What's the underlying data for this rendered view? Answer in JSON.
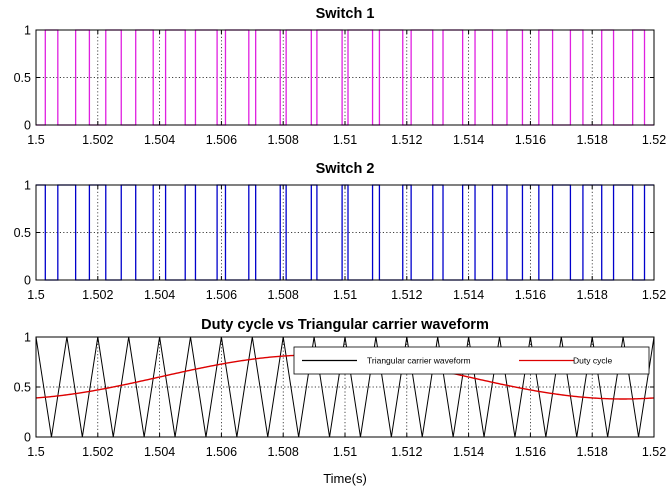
{
  "chart_data": [
    {
      "type": "line",
      "title": "Switch 1",
      "xlabel": "",
      "ylabel": "",
      "xlim": [
        1.5,
        1.52
      ],
      "ylim": [
        0,
        1
      ],
      "xticks": [
        "1.5",
        "1.502",
        "1.504",
        "1.506",
        "1.508",
        "1.51",
        "1.512",
        "1.514",
        "1.516",
        "1.518",
        "1.52"
      ],
      "yticks": [
        "0",
        "0.5",
        "1"
      ],
      "grid": true,
      "color": "#e020e0",
      "carrier_frequency_hz": 1000,
      "modulation": {
        "offset": 0.6,
        "amplitude": 0.22,
        "frequency_hz": 50,
        "phase_deg": -72
      },
      "complementary": false,
      "series": [
        {
          "values": "PWM square wave, levels 0/1; high while duty cycle > triangular carrier"
        }
      ]
    },
    {
      "type": "line",
      "title": "Switch 2",
      "xlabel": "",
      "ylabel": "",
      "xlim": [
        1.5,
        1.52
      ],
      "ylim": [
        0,
        1
      ],
      "xticks": [
        "1.5",
        "1.502",
        "1.504",
        "1.506",
        "1.508",
        "1.51",
        "1.512",
        "1.514",
        "1.516",
        "1.518",
        "1.52"
      ],
      "yticks": [
        "0",
        "0.5",
        "1"
      ],
      "grid": true,
      "color": "#0000cc",
      "carrier_frequency_hz": 1000,
      "modulation": {
        "offset": 0.6,
        "amplitude": 0.22,
        "frequency_hz": 50,
        "phase_deg": -72
      },
      "complementary": true,
      "series": [
        {
          "values": "PWM square wave, levels 0/1; complement of Switch 1"
        }
      ]
    },
    {
      "type": "line",
      "title": "Duty cycle vs Triangular carrier waveform",
      "xlabel": "Time(s)",
      "ylabel": "",
      "xlim": [
        1.5,
        1.52
      ],
      "ylim": [
        0,
        1
      ],
      "xticks": [
        "1.5",
        "1.502",
        "1.504",
        "1.506",
        "1.508",
        "1.51",
        "1.512",
        "1.514",
        "1.516",
        "1.518",
        "1.52"
      ],
      "yticks": [
        "0",
        "0.5",
        "1"
      ],
      "grid": true,
      "legend": "top-right",
      "series": [
        {
          "name": "Triangular carrier waveform",
          "color": "#000000",
          "type": "triangle",
          "frequency_hz": 1000,
          "range": [
            0,
            1
          ]
        },
        {
          "name": "Duty cycle",
          "color": "#dd0000",
          "type": "sine",
          "offset": 0.6,
          "amplitude": 0.22,
          "frequency_hz": 50,
          "phase_deg": -72
        }
      ]
    }
  ]
}
